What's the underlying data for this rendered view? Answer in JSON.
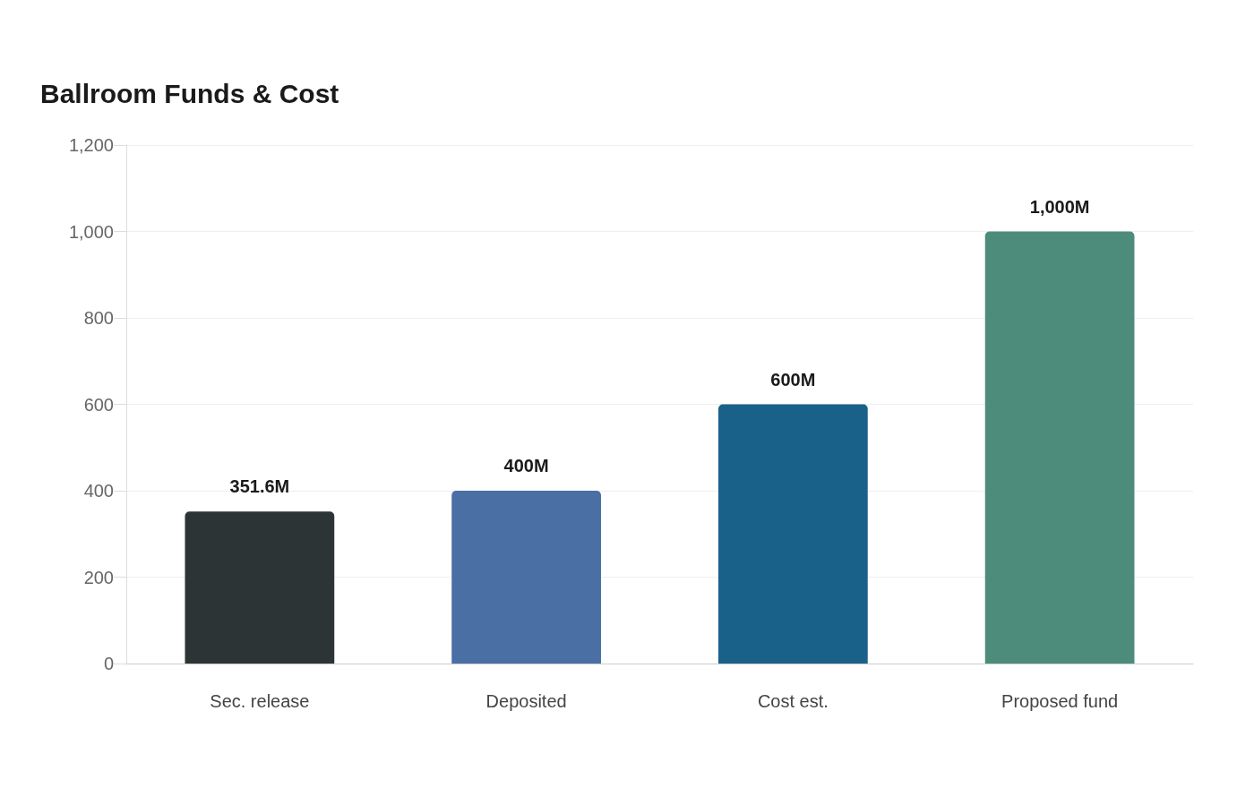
{
  "chart_data": {
    "type": "bar",
    "title": "Ballroom Funds & Cost",
    "categories": [
      "Sec. release",
      "Deposited",
      "Cost est.",
      "Proposed fund"
    ],
    "values": [
      351.6,
      400,
      600,
      1000
    ],
    "colors": [
      "#2d3436",
      "#4a6fa5",
      "#1a6189",
      "#4d8c7a"
    ],
    "value_labels": [
      "351.6M",
      "400M",
      "600M",
      "1,000M"
    ],
    "ylim": [
      0,
      1200
    ],
    "yticks": [
      0,
      200,
      400,
      600,
      800,
      {
        "value": 1000,
        "label": "1,000"
      },
      {
        "value": 1200,
        "label": "1,200"
      }
    ],
    "grid": "y"
  }
}
